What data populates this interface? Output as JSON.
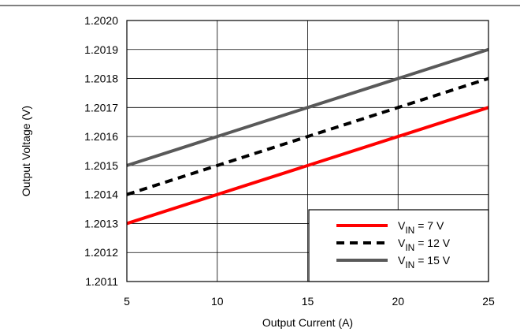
{
  "chart_data": {
    "type": "line",
    "title": "",
    "xlabel": "Output Current (A)",
    "ylabel": "Output Voltage (V)",
    "xlim": [
      5,
      25
    ],
    "ylim": [
      1.2011,
      1.202
    ],
    "xticks": [
      "5",
      "10",
      "15",
      "20",
      "25"
    ],
    "yticks": [
      "1.2011",
      "1.2012",
      "1.2013",
      "1.2014",
      "1.2015",
      "1.2016",
      "1.2017",
      "1.2018",
      "1.2019",
      "1.2020"
    ],
    "grid": true,
    "legend_position": "bottom-right",
    "series": [
      {
        "name": "V_IN = 7 V",
        "legend_main": "V",
        "legend_sub": "IN",
        "legend_rest": " = 7 V",
        "color": "#ff0000",
        "dash": "solid",
        "x": [
          5,
          25
        ],
        "y": [
          1.2013,
          1.2017
        ]
      },
      {
        "name": "V_IN = 12 V",
        "legend_main": "V",
        "legend_sub": "IN",
        "legend_rest": " = 12 V",
        "color": "#000000",
        "dash": "dashed",
        "x": [
          5,
          25
        ],
        "y": [
          1.2014,
          1.2018
        ]
      },
      {
        "name": "V_IN = 15 V",
        "legend_main": "V",
        "legend_sub": "IN",
        "legend_rest": " = 15 V",
        "color": "#595959",
        "dash": "solid",
        "x": [
          5,
          25
        ],
        "y": [
          1.2015,
          1.2019
        ]
      }
    ]
  }
}
